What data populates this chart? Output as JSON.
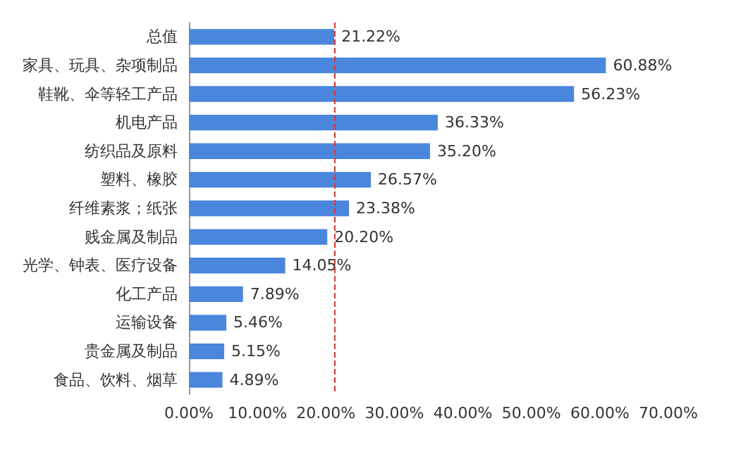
{
  "chart_data": {
    "type": "bar",
    "orientation": "horizontal",
    "categories": [
      "总值",
      "家具、玩具、杂项制品",
      "鞋靴、伞等轻工产品",
      "机电产品",
      "纺织品及原料",
      "塑料、橡胶",
      "纤维素浆；纸张",
      "贱金属及制品",
      "光学、钟表、医疗设备",
      "化工产品",
      "运输设备",
      "贵金属及制品",
      "食品、饮料、烟草"
    ],
    "values": [
      21.22,
      60.88,
      56.23,
      36.33,
      35.2,
      26.57,
      23.38,
      20.2,
      14.05,
      7.89,
      5.46,
      5.15,
      4.89
    ],
    "value_labels": [
      "21.22%",
      "60.88%",
      "56.23%",
      "36.33%",
      "35.20%",
      "26.57%",
      "23.38%",
      "20.20%",
      "14.05%",
      "7.89%",
      "5.46%",
      "5.15%",
      "4.89%"
    ],
    "color": "#4a86dc",
    "xlim": [
      0,
      70
    ],
    "xticks": [
      {
        "value": 0,
        "label": "0.00%"
      },
      {
        "value": 10,
        "label": "10.00%"
      },
      {
        "value": 20,
        "label": "20.00%"
      },
      {
        "value": 30,
        "label": "30.00%"
      },
      {
        "value": 40,
        "label": "40.00%"
      },
      {
        "value": 50,
        "label": "50.00%"
      },
      {
        "value": 60,
        "label": "60.00%"
      },
      {
        "value": 70,
        "label": "70.00%"
      }
    ],
    "ref_lines": [
      {
        "axis": "x",
        "value": 21.22,
        "color": "#d9382f",
        "line_style": "dashed"
      }
    ],
    "grid": false
  }
}
